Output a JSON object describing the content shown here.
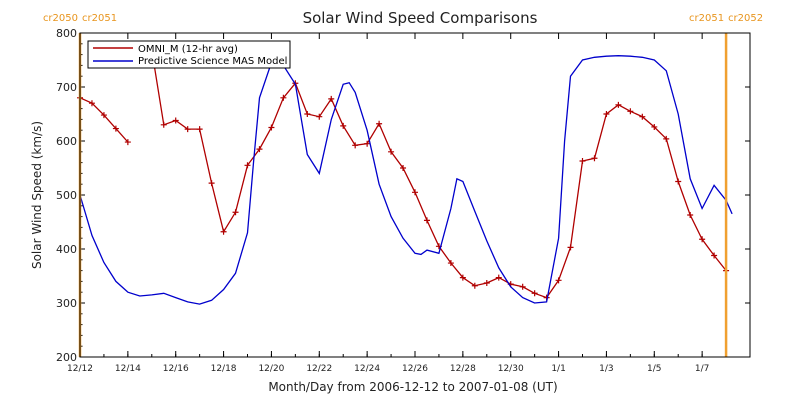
{
  "chart_data": {
    "type": "line",
    "title": "Solar Wind Speed Comparisons",
    "xlabel": "Month/Day from 2006-12-12 to 2007-01-08 (UT)",
    "ylabel": "Solar Wind Speed (km/s)",
    "xlim": [
      "2006-12-12",
      "2007-01-09"
    ],
    "ylim": [
      200,
      800
    ],
    "yticks": [
      200,
      300,
      400,
      500,
      600,
      700,
      800
    ],
    "xticks": [
      {
        "date": "2006-12-12",
        "label": "12/12"
      },
      {
        "date": "2006-12-14",
        "label": "12/14"
      },
      {
        "date": "2006-12-16",
        "label": "12/16"
      },
      {
        "date": "2006-12-18",
        "label": "12/18"
      },
      {
        "date": "2006-12-20",
        "label": "12/20"
      },
      {
        "date": "2006-12-22",
        "label": "12/22"
      },
      {
        "date": "2006-12-24",
        "label": "12/24"
      },
      {
        "date": "2006-12-26",
        "label": "12/26"
      },
      {
        "date": "2006-12-28",
        "label": "12/28"
      },
      {
        "date": "2006-12-30",
        "label": "12/30"
      },
      {
        "date": "2007-01-01",
        "label": "1/1"
      },
      {
        "date": "2007-01-03",
        "label": "1/3"
      },
      {
        "date": "2007-01-05",
        "label": "1/5"
      },
      {
        "date": "2007-01-07",
        "label": "1/7"
      }
    ],
    "legend_position": "top-left",
    "carrington_markers": [
      {
        "date": "2006-12-12",
        "left_label": "cr2050",
        "right_label": "cr2051",
        "color": "#f0a030"
      },
      {
        "date": "2007-01-08",
        "left_label": "cr2051",
        "right_label": "cr2052",
        "color": "#f0a030"
      }
    ],
    "series": [
      {
        "name": "OMNI_M (12-hr avg)",
        "color": "#b00000",
        "marker": "plus",
        "segments": [
          [
            [
              "2006-12-12T00:00",
              680
            ],
            [
              "2006-12-12T12:00",
              670
            ],
            [
              "2006-12-13T00:00",
              648
            ],
            [
              "2006-12-13T12:00",
              623
            ],
            [
              "2006-12-14T00:00",
              598
            ]
          ],
          [
            [
              "2006-12-15T00:00",
              768
            ],
            [
              "2006-12-15T12:00",
              630
            ],
            [
              "2006-12-16T00:00",
              638
            ],
            [
              "2006-12-16T12:00",
              622
            ],
            [
              "2006-12-17T00:00",
              622
            ],
            [
              "2006-12-17T12:00",
              522
            ],
            [
              "2006-12-18T00:00",
              432
            ],
            [
              "2006-12-18T12:00",
              468
            ],
            [
              "2006-12-19T00:00",
              555
            ],
            [
              "2006-12-19T12:00",
              585
            ],
            [
              "2006-12-20T00:00",
              625
            ],
            [
              "2006-12-20T12:00",
              680
            ],
            [
              "2006-12-21T00:00",
              707
            ],
            [
              "2006-12-21T12:00",
              650
            ],
            [
              "2006-12-22T00:00",
              645
            ],
            [
              "2006-12-22T12:00",
              678
            ],
            [
              "2006-12-23T00:00",
              628
            ],
            [
              "2006-12-23T12:00",
              592
            ],
            [
              "2006-12-24T00:00",
              595
            ],
            [
              "2006-12-24T12:00",
              632
            ],
            [
              "2006-12-25T00:00",
              580
            ],
            [
              "2006-12-25T12:00",
              550
            ],
            [
              "2006-12-26T00:00",
              505
            ],
            [
              "2006-12-26T12:00",
              453
            ],
            [
              "2006-12-27T00:00",
              405
            ],
            [
              "2006-12-27T12:00",
              374
            ],
            [
              "2006-12-28T00:00",
              347
            ],
            [
              "2006-12-28T12:00",
              332
            ],
            [
              "2006-12-29T00:00",
              337
            ],
            [
              "2006-12-29T12:00",
              347
            ],
            [
              "2006-12-30T00:00",
              335
            ],
            [
              "2006-12-30T12:00",
              330
            ],
            [
              "2006-12-31T00:00",
              318
            ],
            [
              "2006-12-31T12:00",
              310
            ],
            [
              "2007-01-01T00:00",
              342
            ],
            [
              "2007-01-01T12:00",
              403
            ],
            [
              "2007-01-02T00:00",
              563
            ],
            [
              "2007-01-02T12:00",
              568
            ],
            [
              "2007-01-03T00:00",
              650
            ],
            [
              "2007-01-03T12:00",
              667
            ],
            [
              "2007-01-04T00:00",
              655
            ],
            [
              "2007-01-04T12:00",
              645
            ],
            [
              "2007-01-05T00:00",
              626
            ],
            [
              "2007-01-05T12:00",
              604
            ],
            [
              "2007-01-06T00:00",
              525
            ],
            [
              "2007-01-06T12:00",
              463
            ],
            [
              "2007-01-07T00:00",
              418
            ],
            [
              "2007-01-07T12:00",
              388
            ],
            [
              "2007-01-08T00:00",
              360
            ]
          ]
        ]
      },
      {
        "name": "Predictive Science MAS Model",
        "color": "#0000cc",
        "marker": "none",
        "segments": [
          [
            [
              "2006-12-12T00:00",
              500
            ],
            [
              "2006-12-12T12:00",
              425
            ],
            [
              "2006-12-13T00:00",
              375
            ],
            [
              "2006-12-13T12:00",
              340
            ],
            [
              "2006-12-14T00:00",
              320
            ],
            [
              "2006-12-14T12:00",
              313
            ],
            [
              "2006-12-15T00:00",
              315
            ],
            [
              "2006-12-15T12:00",
              318
            ],
            [
              "2006-12-16T00:00",
              310
            ],
            [
              "2006-12-16T12:00",
              302
            ],
            [
              "2006-12-17T00:00",
              298
            ],
            [
              "2006-12-17T12:00",
              305
            ],
            [
              "2006-12-18T00:00",
              325
            ],
            [
              "2006-12-18T12:00",
              355
            ],
            [
              "2006-12-19T00:00",
              430
            ],
            [
              "2006-12-19T06:00",
              560
            ],
            [
              "2006-12-19T12:00",
              680
            ],
            [
              "2006-12-20T00:00",
              745
            ],
            [
              "2006-12-20T12:00",
              740
            ],
            [
              "2006-12-21T00:00",
              705
            ],
            [
              "2006-12-21T12:00",
              575
            ],
            [
              "2006-12-22T00:00",
              540
            ],
            [
              "2006-12-22T12:00",
              640
            ],
            [
              "2006-12-23T00:00",
              705
            ],
            [
              "2006-12-23T06:00",
              708
            ],
            [
              "2006-12-23T12:00",
              690
            ],
            [
              "2006-12-24T00:00",
              620
            ],
            [
              "2006-12-24T12:00",
              520
            ],
            [
              "2006-12-25T00:00",
              460
            ],
            [
              "2006-12-25T12:00",
              420
            ],
            [
              "2006-12-26T00:00",
              392
            ],
            [
              "2006-12-26T06:00",
              390
            ],
            [
              "2006-12-26T12:00",
              398
            ],
            [
              "2006-12-27T00:00",
              392
            ],
            [
              "2006-12-27T12:00",
              475
            ],
            [
              "2006-12-27T18:00",
              530
            ],
            [
              "2006-12-28T00:00",
              525
            ],
            [
              "2006-12-28T12:00",
              470
            ],
            [
              "2006-12-29T00:00",
              415
            ],
            [
              "2006-12-29T12:00",
              365
            ],
            [
              "2006-12-30T00:00",
              330
            ],
            [
              "2006-12-30T12:00",
              310
            ],
            [
              "2006-12-31T00:00",
              300
            ],
            [
              "2006-12-31T12:00",
              302
            ],
            [
              "2007-01-01T00:00",
              420
            ],
            [
              "2007-01-01T06:00",
              600
            ],
            [
              "2007-01-01T12:00",
              720
            ],
            [
              "2007-01-02T00:00",
              750
            ],
            [
              "2007-01-02T12:00",
              755
            ],
            [
              "2007-01-03T00:00",
              757
            ],
            [
              "2007-01-03T12:00",
              758
            ],
            [
              "2007-01-04T00:00",
              757
            ],
            [
              "2007-01-04T12:00",
              755
            ],
            [
              "2007-01-05T00:00",
              750
            ],
            [
              "2007-01-05T12:00",
              730
            ],
            [
              "2007-01-06T00:00",
              650
            ],
            [
              "2007-01-06T12:00",
              530
            ],
            [
              "2007-01-07T00:00",
              475
            ],
            [
              "2007-01-07T12:00",
              518
            ],
            [
              "2007-01-08T00:00",
              490
            ],
            [
              "2007-01-08T06:00",
              465
            ]
          ]
        ]
      }
    ]
  }
}
